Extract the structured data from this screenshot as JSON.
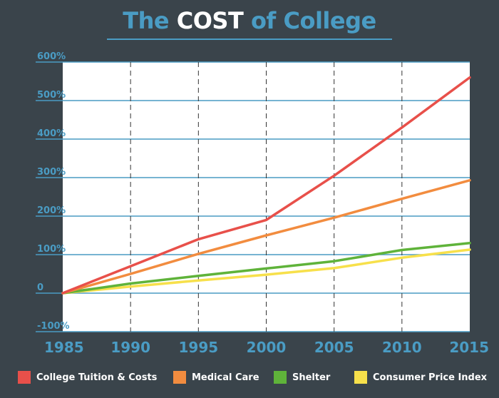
{
  "title": {
    "part1": "The",
    "part2": "COST",
    "part3": "of College"
  },
  "colors": {
    "background": "#3a444b",
    "plot_area": "#ffffff",
    "accent": "#4a9cc4",
    "series": [
      "#e8504a",
      "#f28c3f",
      "#5fb33a",
      "#f7e04b"
    ]
  },
  "chart_data": {
    "type": "line",
    "x": [
      1985,
      1990,
      1995,
      2000,
      2005,
      2010,
      2015
    ],
    "xlim": [
      1985,
      2015
    ],
    "ylim": [
      -100,
      600
    ],
    "yticks": [
      -100,
      0,
      100,
      200,
      300,
      400,
      500,
      600
    ],
    "ytick_labels": [
      "-100%",
      "0",
      "100%",
      "200%",
      "300%",
      "400%",
      "500%",
      "600%"
    ],
    "xtick_labels": [
      "1985",
      "1990",
      "1995",
      "2000",
      "2005",
      "2010",
      "2015"
    ],
    "grid": true,
    "legend_position": "bottom",
    "series": [
      {
        "name": "College Tuition & Costs",
        "values": [
          0,
          70,
          140,
          190,
          305,
          430,
          560
        ]
      },
      {
        "name": "Medical Care",
        "values": [
          0,
          50,
          102,
          150,
          196,
          245,
          293
        ]
      },
      {
        "name": "Shelter",
        "values": [
          0,
          25,
          45,
          64,
          83,
          112,
          130
        ]
      },
      {
        "name": "Consumer Price Index",
        "values": [
          0,
          17,
          33,
          48,
          65,
          92,
          113
        ]
      }
    ]
  }
}
